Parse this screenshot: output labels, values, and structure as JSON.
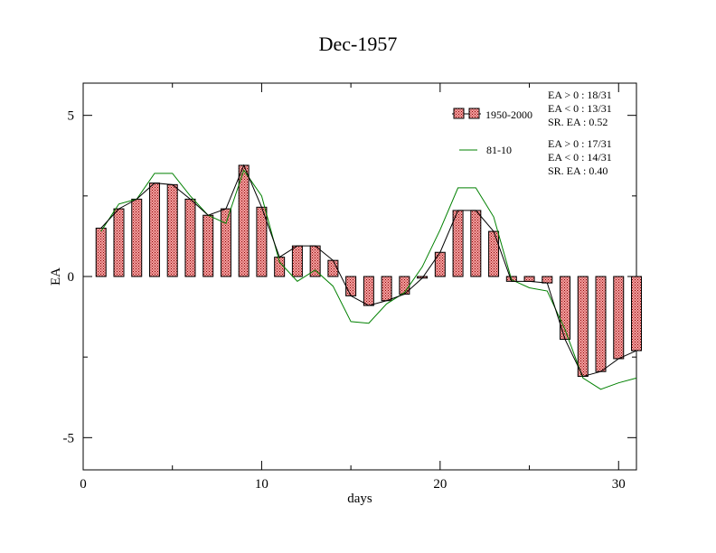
{
  "chart_data": {
    "type": "bar",
    "title": "Dec-1957",
    "xlabel": "days",
    "ylabel": "EA",
    "xlim": [
      0,
      31
    ],
    "ylim": [
      -6,
      6
    ],
    "x_ticks": [
      0,
      10,
      20,
      30
    ],
    "x_tick_labels": [
      "0",
      "10",
      "20",
      "30"
    ],
    "y_ticks": [
      -5,
      0,
      5
    ],
    "y_tick_labels": [
      "-5",
      "0",
      "5"
    ],
    "grid": false,
    "legend_position": "top-right",
    "colors": {
      "bar_fill": "#f08080",
      "bar_hatch": "#8b0000",
      "line_1950_2000": "#000000",
      "line_81_10": "#008000"
    },
    "x": [
      1,
      2,
      3,
      4,
      5,
      6,
      7,
      8,
      9,
      10,
      11,
      12,
      13,
      14,
      15,
      16,
      17,
      18,
      19,
      20,
      21,
      22,
      23,
      24,
      25,
      26,
      27,
      28,
      29,
      30,
      31
    ],
    "series": [
      {
        "name": "1950-2000",
        "style": "bar+line",
        "values": [
          1.5,
          2.1,
          2.4,
          2.9,
          2.85,
          2.4,
          1.9,
          2.1,
          3.45,
          2.15,
          0.6,
          0.95,
          0.95,
          0.5,
          -0.6,
          -0.9,
          -0.75,
          -0.55,
          -0.05,
          0.75,
          2.05,
          2.05,
          1.4,
          -0.15,
          -0.15,
          -0.2,
          -1.95,
          -3.1,
          -2.95,
          -2.55,
          -2.3
        ],
        "stats": [
          "EA > 0 : 18/31",
          "EA < 0 : 13/31",
          "SR. EA :  0.52"
        ]
      },
      {
        "name": "81-10",
        "style": "line",
        "values": [
          1.4,
          2.25,
          2.4,
          3.2,
          3.2,
          2.5,
          1.9,
          1.65,
          3.3,
          2.5,
          0.45,
          -0.15,
          0.2,
          -0.3,
          -1.4,
          -1.45,
          -0.85,
          -0.5,
          0.3,
          1.45,
          2.75,
          2.75,
          1.85,
          -0.1,
          -0.35,
          -0.45,
          -1.65,
          -3.15,
          -3.5,
          -3.3,
          -3.15
        ],
        "stats": [
          "EA > 0 : 17/31",
          "EA < 0 : 14/31",
          "SR. EA :  0.40"
        ]
      }
    ]
  }
}
